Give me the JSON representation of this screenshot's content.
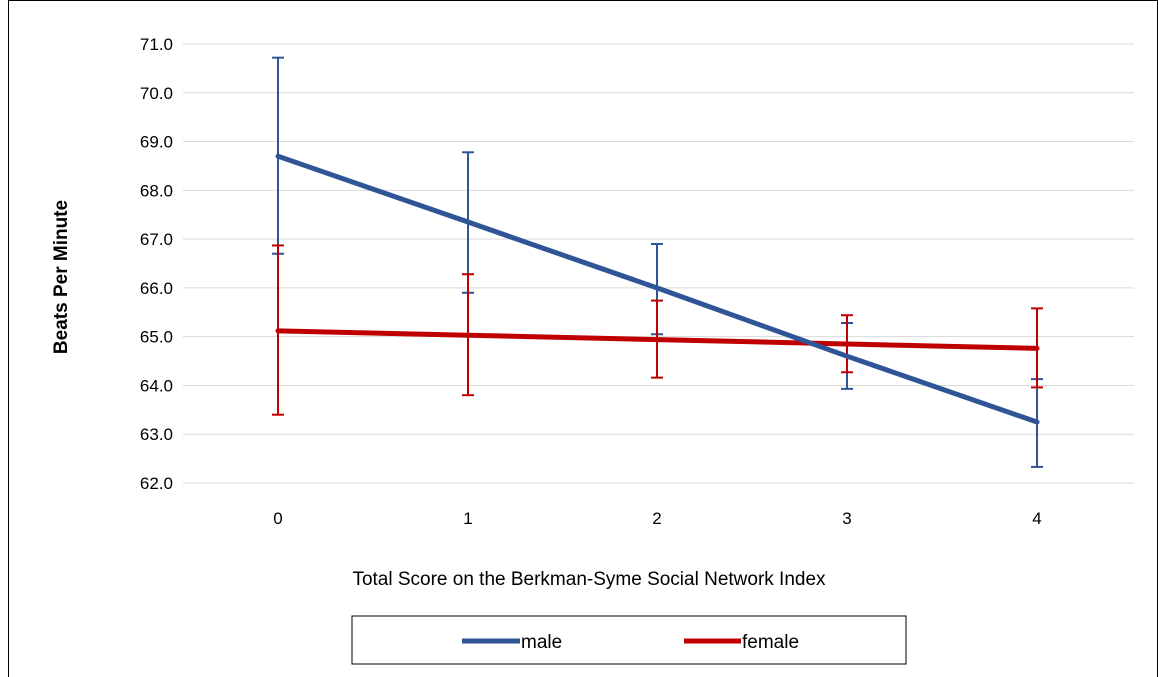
{
  "chart_data": {
    "type": "line",
    "title": "",
    "xlabel": "Total Score on the Berkman-Syme Social Network Index",
    "ylabel": "Beats Per Minute",
    "x": [
      0,
      1,
      2,
      3,
      4
    ],
    "x_tick_labels": [
      "0",
      "1",
      "2",
      "3",
      "4"
    ],
    "ylim": [
      62.0,
      71.0
    ],
    "y_ticks": [
      62.0,
      63.0,
      64.0,
      65.0,
      66.0,
      67.0,
      68.0,
      69.0,
      70.0,
      71.0
    ],
    "y_tick_labels": [
      "62.0",
      "63.0",
      "64.0",
      "65.0",
      "66.0",
      "67.0",
      "68.0",
      "69.0",
      "70.0",
      "71.0"
    ],
    "grid": true,
    "legend_position": "bottom",
    "series": [
      {
        "name": "male",
        "color": "#2F5597",
        "values": [
          68.7,
          67.35,
          66.0,
          64.6,
          63.25
        ],
        "error_high": [
          70.72,
          68.78,
          66.9,
          65.28,
          64.13
        ],
        "error_low": [
          66.7,
          65.9,
          65.05,
          63.93,
          62.33
        ]
      },
      {
        "name": "female",
        "color": "#C00000",
        "values": [
          65.12,
          65.03,
          64.94,
          64.85,
          64.76
        ],
        "error_high": [
          66.87,
          66.28,
          65.74,
          65.44,
          65.58
        ],
        "error_low": [
          63.4,
          63.8,
          64.16,
          64.27,
          63.96
        ]
      }
    ]
  }
}
